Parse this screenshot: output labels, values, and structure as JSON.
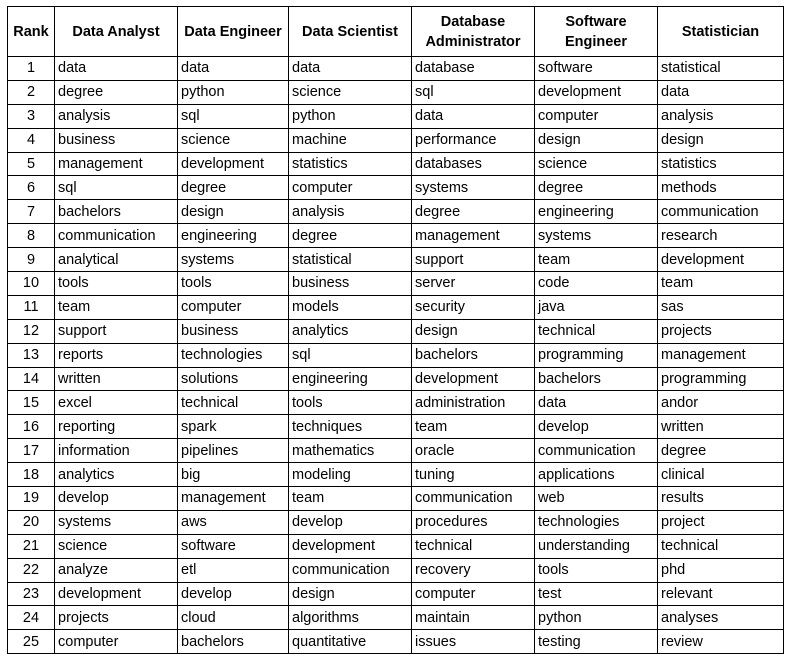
{
  "table": {
    "headers": [
      "Rank",
      "Data Analyst",
      "Data Engineer",
      "Data Scientist",
      "Database Administrator",
      "Software Engineer",
      "Statistician"
    ],
    "rows": [
      [
        "1",
        "data",
        "data",
        "data",
        "database",
        "software",
        "statistical"
      ],
      [
        "2",
        "degree",
        "python",
        "science",
        "sql",
        "development",
        "data"
      ],
      [
        "3",
        "analysis",
        "sql",
        "python",
        "data",
        "computer",
        "analysis"
      ],
      [
        "4",
        "business",
        "science",
        "machine",
        "performance",
        "design",
        "design"
      ],
      [
        "5",
        "management",
        "development",
        "statistics",
        "databases",
        "science",
        "statistics"
      ],
      [
        "6",
        "sql",
        "degree",
        "computer",
        "systems",
        "degree",
        "methods"
      ],
      [
        "7",
        "bachelors",
        "design",
        "analysis",
        "degree",
        "engineering",
        "communication"
      ],
      [
        "8",
        "communication",
        "engineering",
        "degree",
        "management",
        "systems",
        "research"
      ],
      [
        "9",
        "analytical",
        "systems",
        "statistical",
        "support",
        "team",
        "development"
      ],
      [
        "10",
        "tools",
        "tools",
        "business",
        "server",
        "code",
        "team"
      ],
      [
        "11",
        "team",
        "computer",
        "models",
        "security",
        "java",
        "sas"
      ],
      [
        "12",
        "support",
        "business",
        "analytics",
        "design",
        "technical",
        "projects"
      ],
      [
        "13",
        "reports",
        "technologies",
        "sql",
        "bachelors",
        "programming",
        "management"
      ],
      [
        "14",
        "written",
        "solutions",
        "engineering",
        "development",
        "bachelors",
        "programming"
      ],
      [
        "15",
        "excel",
        "technical",
        "tools",
        "administration",
        "data",
        "andor"
      ],
      [
        "16",
        "reporting",
        "spark",
        "techniques",
        "team",
        "develop",
        "written"
      ],
      [
        "17",
        "information",
        "pipelines",
        "mathematics",
        "oracle",
        "communication",
        "degree"
      ],
      [
        "18",
        "analytics",
        "big",
        "modeling",
        "tuning",
        "applications",
        "clinical"
      ],
      [
        "19",
        "develop",
        "management",
        "team",
        "communication",
        "web",
        "results"
      ],
      [
        "20",
        "systems",
        "aws",
        "develop",
        "procedures",
        "technologies",
        "project"
      ],
      [
        "21",
        "science",
        "software",
        "development",
        "technical",
        "understanding",
        "technical"
      ],
      [
        "22",
        "analyze",
        "etl",
        "communication",
        "recovery",
        "tools",
        "phd"
      ],
      [
        "23",
        "development",
        "develop",
        "design",
        "computer",
        "test",
        "relevant"
      ],
      [
        "24",
        "projects",
        "cloud",
        "algorithms",
        "maintain",
        "python",
        "analyses"
      ],
      [
        "25",
        "computer",
        "bachelors",
        "quantitative",
        "issues",
        "testing",
        "review"
      ]
    ]
  }
}
